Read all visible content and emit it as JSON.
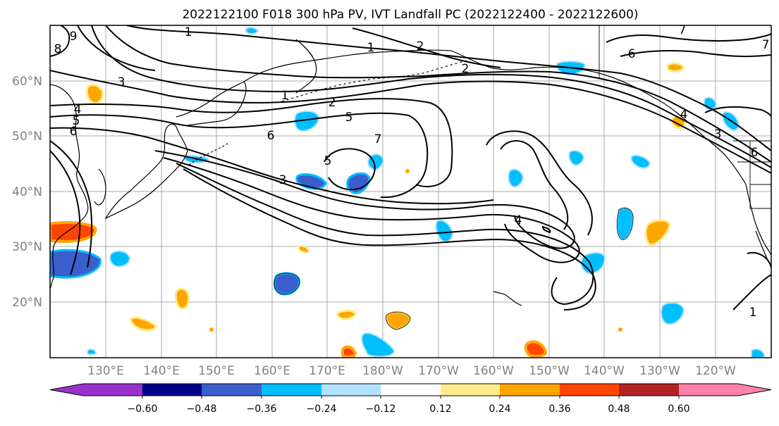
{
  "title": "2022122100 F018 300 hPa PV, IVT Landfall PC (2022122400 - 2022122600)",
  "lat_labels": [
    "60°N",
    "50°N",
    "40°N",
    "30°N",
    "20°N"
  ],
  "lon_labels": [
    "130°E",
    "140°E",
    "150°E",
    "160°E",
    "170°E",
    "180°W",
    "170°W",
    "160°W",
    "150°W",
    "140°W",
    "130°W",
    "120°W"
  ],
  "contour_labels": [
    "1",
    "1",
    "1",
    "1",
    "2",
    "2",
    "2",
    "3",
    "3",
    "3",
    "4",
    "4",
    "4",
    "5",
    "5",
    "5",
    "6",
    "6",
    "6",
    "6",
    "7",
    "7",
    "7",
    "8",
    "9"
  ],
  "colorbar": {
    "colors": [
      "#9932cc",
      "#00008b",
      "#3a5fcd",
      "#00bfff",
      "#b0e2ff",
      "#ffffff",
      "#ffec8b",
      "#ffa500",
      "#ff4500",
      "#b22222",
      "#ff82ab"
    ],
    "tick_labels": [
      "−0.60",
      "−0.48",
      "−0.36",
      "−0.24",
      "−0.12",
      "0.12",
      "0.24",
      "0.36",
      "0.48",
      "0.60"
    ]
  }
}
